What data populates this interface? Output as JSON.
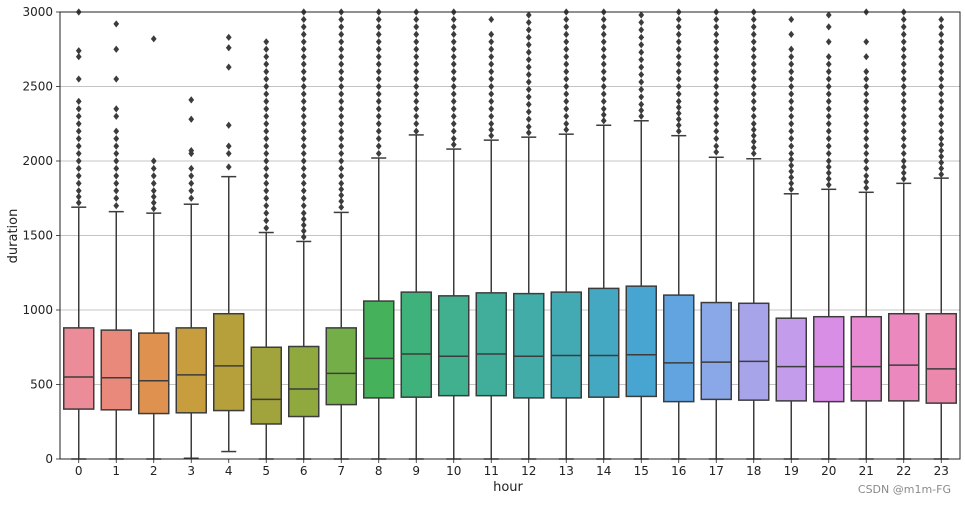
{
  "chart_data": {
    "type": "box",
    "xlabel": "hour",
    "ylabel": "duration",
    "ylim": [
      0,
      3000
    ],
    "yticks": [
      0,
      500,
      1000,
      1500,
      2000,
      2500,
      3000
    ],
    "grid": "horizontal",
    "categories": [
      "0",
      "1",
      "2",
      "3",
      "4",
      "5",
      "6",
      "7",
      "8",
      "9",
      "10",
      "11",
      "12",
      "13",
      "14",
      "15",
      "16",
      "17",
      "18",
      "19",
      "20",
      "21",
      "22",
      "23"
    ],
    "series": [
      {
        "hour": "0",
        "q1": 335,
        "median": 550,
        "q3": 880,
        "whisker_low": 0,
        "whisker_high": 1690,
        "color": "#ec8c98",
        "outliers": [
          1720,
          1760,
          1800,
          1850,
          1900,
          1950,
          2000,
          2050,
          2100,
          2150,
          2200,
          2250,
          2300,
          2350,
          2400,
          2550,
          2700,
          2740,
          3000
        ]
      },
      {
        "hour": "1",
        "q1": 330,
        "median": 545,
        "q3": 865,
        "whisker_low": 0,
        "whisker_high": 1660,
        "color": "#e8897b",
        "outliers": [
          1700,
          1750,
          1800,
          1850,
          1900,
          1950,
          2000,
          2050,
          2100,
          2150,
          2200,
          2300,
          2350,
          2550,
          2750,
          2920
        ]
      },
      {
        "hour": "2",
        "q1": 305,
        "median": 525,
        "q3": 845,
        "whisker_low": 0,
        "whisker_high": 1650,
        "color": "#df9150",
        "outliers": [
          1680,
          1720,
          1760,
          1800,
          1850,
          1900,
          1950,
          2000,
          2820
        ]
      },
      {
        "hour": "3",
        "q1": 310,
        "median": 565,
        "q3": 880,
        "whisker_low": 5,
        "whisker_high": 1710,
        "color": "#c79d3d",
        "outliers": [
          1750,
          1800,
          1850,
          1900,
          1950,
          2050,
          2070,
          2280,
          2410
        ]
      },
      {
        "hour": "4",
        "q1": 325,
        "median": 625,
        "q3": 975,
        "whisker_low": 50,
        "whisker_high": 1895,
        "color": "#b5a03b",
        "outliers": [
          1960,
          2050,
          2100,
          2240,
          2630,
          2760,
          2830
        ]
      },
      {
        "hour": "5",
        "q1": 235,
        "median": 400,
        "q3": 750,
        "whisker_low": 0,
        "whisker_high": 1520,
        "color": "#a1a33c",
        "outliers": [
          1550,
          1600,
          1650,
          1700,
          1750,
          1800,
          1850,
          1900,
          1950,
          2000,
          2050,
          2100,
          2150,
          2200,
          2250,
          2300,
          2350,
          2400,
          2450,
          2500,
          2550,
          2600,
          2650,
          2700,
          2750,
          2800
        ]
      },
      {
        "hour": "6",
        "q1": 285,
        "median": 470,
        "q3": 755,
        "whisker_low": 0,
        "whisker_high": 1460,
        "color": "#8fa93e",
        "outliers": [
          1490,
          1530,
          1570,
          1610,
          1650,
          1700,
          1750,
          1800,
          1850,
          1900,
          1950,
          2000,
          2050,
          2100,
          2150,
          2200,
          2250,
          2300,
          2350,
          2400,
          2450,
          2500,
          2550,
          2600,
          2650,
          2700,
          2750,
          2800,
          2850,
          2900,
          2950,
          3000
        ]
      },
      {
        "hour": "7",
        "q1": 365,
        "median": 575,
        "q3": 880,
        "whisker_low": 0,
        "whisker_high": 1655,
        "color": "#74ae49",
        "outliers": [
          1690,
          1730,
          1770,
          1810,
          1850,
          1900,
          1950,
          2000,
          2050,
          2100,
          2150,
          2200,
          2250,
          2300,
          2350,
          2400,
          2450,
          2500,
          2550,
          2600,
          2650,
          2700,
          2750,
          2800,
          2850,
          2900,
          2950,
          3000
        ]
      },
      {
        "hour": "8",
        "q1": 410,
        "median": 675,
        "q3": 1060,
        "whisker_low": 0,
        "whisker_high": 2020,
        "color": "#45b15b",
        "outliers": [
          2050,
          2100,
          2150,
          2200,
          2250,
          2300,
          2350,
          2400,
          2450,
          2500,
          2550,
          2600,
          2650,
          2700,
          2750,
          2800,
          2850,
          2900,
          2950,
          3000
        ]
      },
      {
        "hour": "9",
        "q1": 415,
        "median": 705,
        "q3": 1120,
        "whisker_low": 0,
        "whisker_high": 2175,
        "color": "#3fb27c",
        "outliers": [
          2200,
          2250,
          2300,
          2350,
          2400,
          2450,
          2500,
          2550,
          2600,
          2650,
          2700,
          2750,
          2800,
          2850,
          2900,
          2950,
          3000
        ]
      },
      {
        "hour": "10",
        "q1": 425,
        "median": 690,
        "q3": 1095,
        "whisker_low": 0,
        "whisker_high": 2080,
        "color": "#40b08f",
        "outliers": [
          2110,
          2150,
          2200,
          2250,
          2300,
          2350,
          2400,
          2450,
          2500,
          2550,
          2600,
          2650,
          2700,
          2750,
          2800,
          2850,
          2900,
          2950,
          3000
        ]
      },
      {
        "hour": "11",
        "q1": 425,
        "median": 705,
        "q3": 1115,
        "whisker_low": 0,
        "whisker_high": 2140,
        "color": "#41ae9c",
        "outliers": [
          2170,
          2210,
          2250,
          2300,
          2350,
          2400,
          2450,
          2500,
          2550,
          2600,
          2650,
          2700,
          2750,
          2800,
          2850,
          2950
        ]
      },
      {
        "hour": "12",
        "q1": 410,
        "median": 690,
        "q3": 1110,
        "whisker_low": 0,
        "whisker_high": 2160,
        "color": "#42aca8",
        "outliers": [
          2190,
          2230,
          2280,
          2330,
          2380,
          2430,
          2480,
          2530,
          2580,
          2630,
          2680,
          2730,
          2780,
          2830,
          2880,
          2930,
          2980
        ]
      },
      {
        "hour": "13",
        "q1": 410,
        "median": 695,
        "q3": 1120,
        "whisker_low": 0,
        "whisker_high": 2180,
        "color": "#43aab4",
        "outliers": [
          2210,
          2250,
          2300,
          2350,
          2400,
          2450,
          2500,
          2550,
          2600,
          2650,
          2700,
          2750,
          2800,
          2850,
          2900,
          2950,
          3000
        ]
      },
      {
        "hour": "14",
        "q1": 415,
        "median": 695,
        "q3": 1145,
        "whisker_low": 0,
        "whisker_high": 2240,
        "color": "#45a8c2",
        "outliers": [
          2270,
          2310,
          2350,
          2400,
          2450,
          2500,
          2550,
          2600,
          2650,
          2700,
          2750,
          2800,
          2850,
          2900,
          2950,
          3000
        ]
      },
      {
        "hour": "15",
        "q1": 420,
        "median": 700,
        "q3": 1160,
        "whisker_low": 0,
        "whisker_high": 2270,
        "color": "#48a4d0",
        "outliers": [
          2300,
          2340,
          2380,
          2430,
          2480,
          2530,
          2580,
          2630,
          2680,
          2730,
          2780,
          2830,
          2880,
          2930,
          2980
        ]
      },
      {
        "hour": "16",
        "q1": 385,
        "median": 645,
        "q3": 1100,
        "whisker_low": 0,
        "whisker_high": 2170,
        "color": "#62a4e0",
        "outliers": [
          2200,
          2240,
          2280,
          2320,
          2360,
          2400,
          2450,
          2500,
          2550,
          2600,
          2650,
          2700,
          2750,
          2800,
          2850,
          2900,
          2950,
          3000
        ]
      },
      {
        "hour": "17",
        "q1": 400,
        "median": 650,
        "q3": 1050,
        "whisker_low": 0,
        "whisker_high": 2025,
        "color": "#8aa8e8",
        "outliers": [
          2060,
          2100,
          2150,
          2200,
          2250,
          2300,
          2350,
          2400,
          2450,
          2500,
          2550,
          2600,
          2650,
          2700,
          2750,
          2800,
          2850,
          2900,
          2950,
          3000
        ]
      },
      {
        "hour": "18",
        "q1": 395,
        "median": 655,
        "q3": 1045,
        "whisker_low": 0,
        "whisker_high": 2015,
        "color": "#a8a4ea",
        "outliers": [
          2050,
          2090,
          2130,
          2170,
          2210,
          2250,
          2300,
          2350,
          2400,
          2450,
          2500,
          2550,
          2600,
          2650,
          2700,
          2750,
          2800,
          2850,
          2900,
          2950,
          3000
        ]
      },
      {
        "hour": "19",
        "q1": 390,
        "median": 620,
        "q3": 945,
        "whisker_low": 0,
        "whisker_high": 1780,
        "color": "#c39cec",
        "outliers": [
          1810,
          1850,
          1890,
          1930,
          1970,
          2010,
          2050,
          2100,
          2150,
          2200,
          2250,
          2300,
          2350,
          2400,
          2450,
          2500,
          2550,
          2600,
          2650,
          2700,
          2750,
          2850,
          2950
        ]
      },
      {
        "hour": "20",
        "q1": 385,
        "median": 620,
        "q3": 955,
        "whisker_low": 0,
        "whisker_high": 1810,
        "color": "#d98ee6",
        "outliers": [
          1840,
          1880,
          1920,
          1960,
          2000,
          2050,
          2100,
          2150,
          2200,
          2250,
          2300,
          2350,
          2400,
          2450,
          2500,
          2550,
          2600,
          2650,
          2700,
          2800,
          2900,
          2980
        ]
      },
      {
        "hour": "21",
        "q1": 390,
        "median": 620,
        "q3": 955,
        "whisker_low": 0,
        "whisker_high": 1790,
        "color": "#e88bd3",
        "outliers": [
          1820,
          1860,
          1900,
          1950,
          2000,
          2050,
          2100,
          2150,
          2200,
          2250,
          2300,
          2350,
          2400,
          2450,
          2500,
          2550,
          2600,
          2700,
          2800,
          3000
        ]
      },
      {
        "hour": "22",
        "q1": 390,
        "median": 630,
        "q3": 975,
        "whisker_low": 0,
        "whisker_high": 1850,
        "color": "#eb89bf",
        "outliers": [
          1880,
          1920,
          1960,
          2000,
          2050,
          2100,
          2150,
          2200,
          2250,
          2300,
          2350,
          2400,
          2450,
          2500,
          2550,
          2600,
          2650,
          2700,
          2750,
          2800,
          2850,
          2900,
          2950,
          3000
        ]
      },
      {
        "hour": "23",
        "q1": 375,
        "median": 605,
        "q3": 975,
        "whisker_low": 0,
        "whisker_high": 1885,
        "color": "#ec88ab",
        "outliers": [
          1910,
          1950,
          1990,
          2030,
          2070,
          2110,
          2150,
          2200,
          2250,
          2300,
          2350,
          2400,
          2450,
          2500,
          2550,
          2600,
          2650,
          2700,
          2750,
          2800,
          2850,
          2900,
          2950
        ]
      }
    ]
  },
  "watermark": "CSDN @m1m-FG"
}
